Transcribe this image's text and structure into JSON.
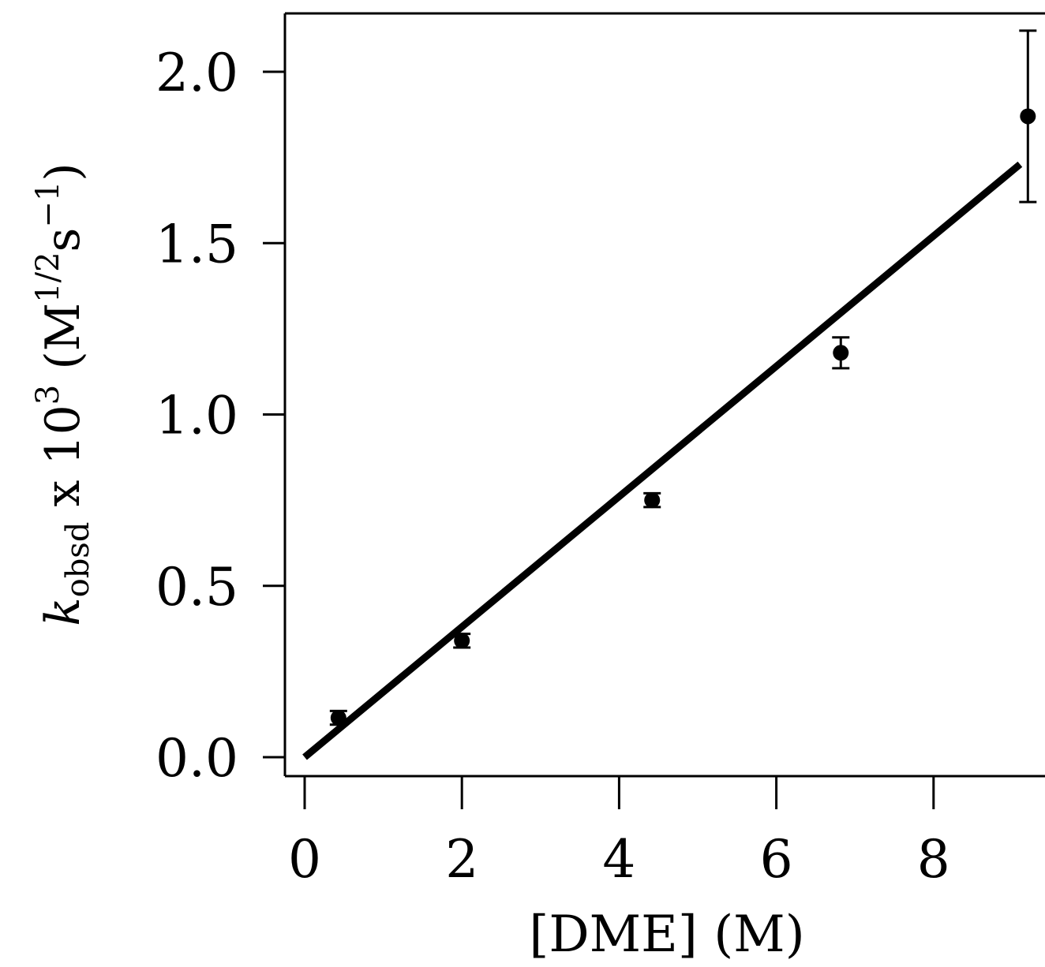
{
  "chart_data": {
    "type": "scatter",
    "title": "",
    "xlabel": "[DME] (M)",
    "ylabel_parts": {
      "k": "k",
      "sub": "obsd",
      "mid": " x 10",
      "exp": "3",
      "open": " (M",
      "m_exp": "1/2",
      "s": "s",
      "s_exp": "−1",
      "close": ")"
    },
    "xlim": [
      -0.6,
      9.45
    ],
    "ylim": [
      -0.06,
      2.17
    ],
    "x_ticks": [
      0,
      2,
      4,
      6,
      8
    ],
    "x_tick_labels": [
      "0",
      "2",
      "4",
      "6",
      "8"
    ],
    "y_ticks": [
      0.0,
      0.5,
      1.0,
      1.5,
      2.0
    ],
    "y_tick_labels": [
      "0.0",
      "0.5",
      "1.0",
      "1.5",
      "2.0"
    ],
    "grid": false,
    "series": [
      {
        "points": [
          {
            "x": 0.43,
            "y": 0.115,
            "err": 0.02
          },
          {
            "x": 2.0,
            "y": 0.34,
            "err": 0.02
          },
          {
            "x": 4.42,
            "y": 0.75,
            "err": 0.02
          },
          {
            "x": 6.82,
            "y": 1.18,
            "err": 0.045
          },
          {
            "x": 9.2,
            "y": 1.87,
            "err": 0.25
          }
        ],
        "fit_line": {
          "x": [
            0.0,
            9.1
          ],
          "y": [
            0.0,
            1.73
          ]
        },
        "color": "#000000"
      }
    ]
  }
}
